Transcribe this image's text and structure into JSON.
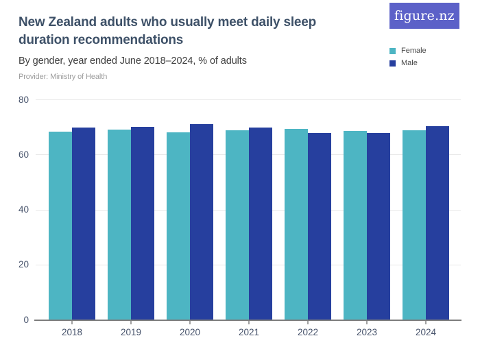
{
  "header": {
    "title": "New Zealand adults who usually meet daily sleep duration recommendations",
    "subtitle": "By gender, year ended June 2018–2024, % of adults",
    "provider": "Provider: Ministry of Health",
    "logo_text": "figure.nz"
  },
  "legend": {
    "items": [
      {
        "label": "Female",
        "color": "#4db5c3"
      },
      {
        "label": "Male",
        "color": "#263f9e"
      }
    ]
  },
  "colors": {
    "female": "#4db5c3",
    "male": "#263f9e",
    "logo_background": "#5c61c8",
    "title_text": "#3e5168",
    "axis_label": "#47536b",
    "gridline": "#e8e8e8",
    "axis_line": "#7d7d7d"
  },
  "chart_data": {
    "type": "bar",
    "title": "New Zealand adults who usually meet daily sleep duration recommendations",
    "subtitle": "By gender, year ended June 2018–2024, % of adults",
    "categories": [
      "2018",
      "2019",
      "2020",
      "2021",
      "2022",
      "2023",
      "2024"
    ],
    "series": [
      {
        "name": "Female",
        "color": "#4db5c3",
        "values": [
          68.3,
          69.1,
          68.1,
          68.9,
          69.4,
          68.7,
          69.0
        ]
      },
      {
        "name": "Male",
        "color": "#263f9e",
        "values": [
          70.0,
          70.1,
          71.1,
          69.8,
          67.9,
          67.9,
          70.3
        ]
      }
    ],
    "xlabel": "",
    "ylabel": "% of adults",
    "ylim": [
      0,
      80
    ],
    "yticks": [
      0,
      20,
      40,
      60,
      80
    ],
    "grid": true,
    "legend_position": "top-right"
  }
}
